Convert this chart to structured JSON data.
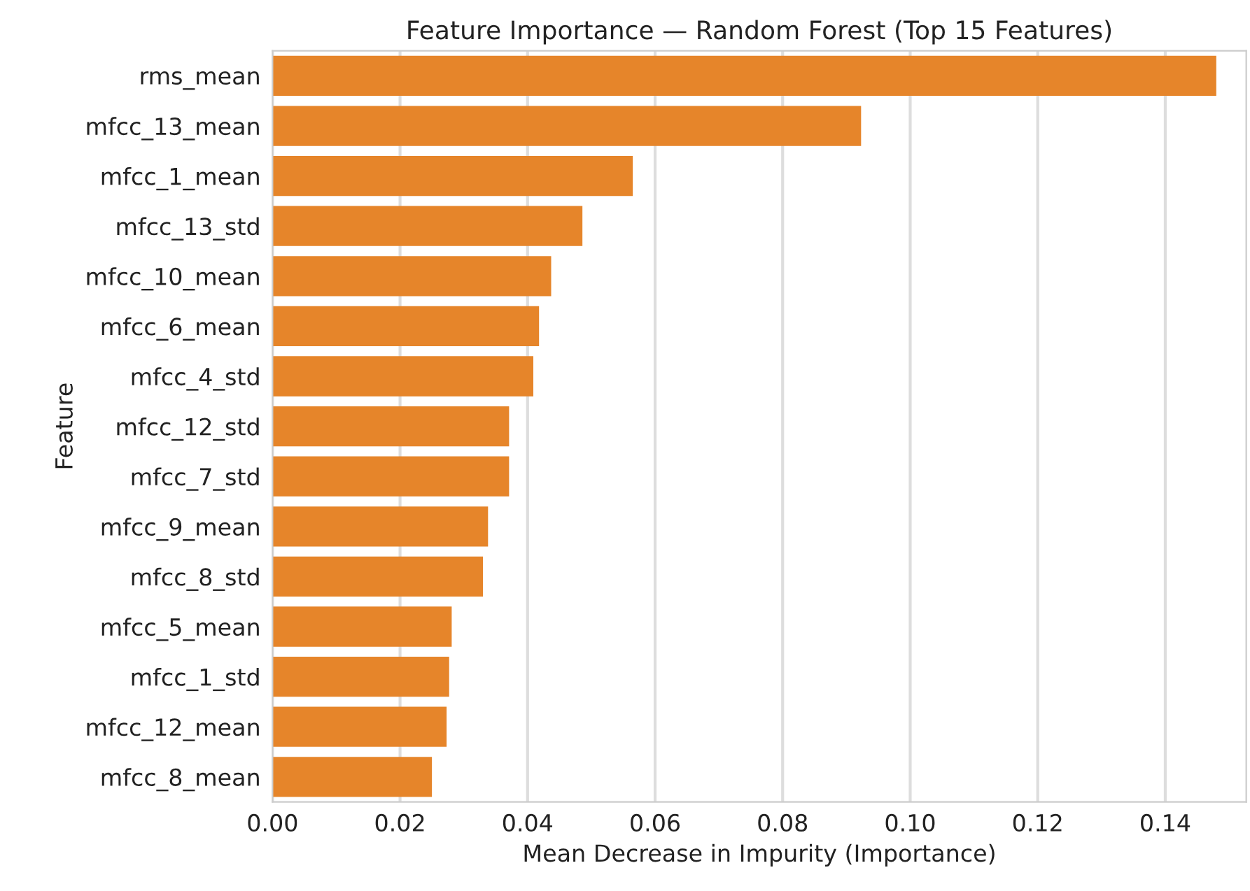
{
  "chart_data": {
    "type": "bar",
    "orientation": "horizontal",
    "title": "Feature Importance — Random Forest (Top 15 Features)",
    "xlabel": "Mean Decrease in Impurity (Importance)",
    "ylabel": "Feature",
    "categories": [
      "rms_mean",
      "mfcc_13_mean",
      "mfcc_1_mean",
      "mfcc_13_std",
      "mfcc_10_mean",
      "mfcc_6_mean",
      "mfcc_4_std",
      "mfcc_12_std",
      "mfcc_7_std",
      "mfcc_9_mean",
      "mfcc_8_std",
      "mfcc_5_mean",
      "mfcc_1_std",
      "mfcc_12_mean",
      "mfcc_8_mean"
    ],
    "values": [
      0.148,
      0.0923,
      0.0565,
      0.0486,
      0.0437,
      0.0418,
      0.0409,
      0.0371,
      0.0371,
      0.0338,
      0.033,
      0.0281,
      0.0277,
      0.0273,
      0.025
    ],
    "color": "#e6852a",
    "xlim": [
      0,
      0.1527
    ],
    "xticks": [
      {
        "value": 0,
        "label": "0.00"
      },
      {
        "value": 0.02,
        "label": "0.02"
      },
      {
        "value": 0.04,
        "label": "0.04"
      },
      {
        "value": 0.06,
        "label": "0.06"
      },
      {
        "value": 0.08,
        "label": "0.08"
      },
      {
        "value": 0.1,
        "label": "0.10"
      },
      {
        "value": 0.12,
        "label": "0.12"
      },
      {
        "value": 0.14,
        "label": "0.14"
      }
    ],
    "grid": "x",
    "legend": false
  }
}
